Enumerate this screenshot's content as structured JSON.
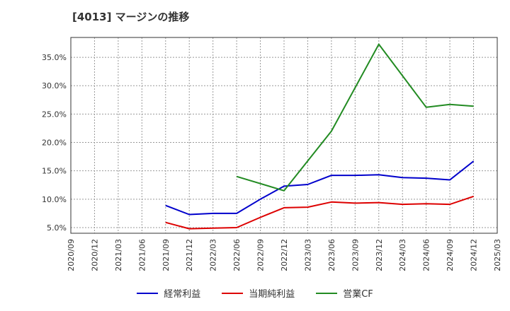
{
  "chart_data": {
    "type": "line",
    "title": "[4013]  マージンの推移",
    "xlabel": "",
    "ylabel": "",
    "x": [
      "2020/09",
      "2020/12",
      "2021/03",
      "2021/06",
      "2021/09",
      "2021/12",
      "2022/03",
      "2022/06",
      "2022/09",
      "2022/12",
      "2023/03",
      "2023/06",
      "2023/09",
      "2023/12",
      "2024/03",
      "2024/06",
      "2024/09",
      "2024/12",
      "2025/03"
    ],
    "y_ticks": [
      "5.0%",
      "10.0%",
      "15.0%",
      "20.0%",
      "25.0%",
      "30.0%",
      "35.0%"
    ],
    "y_tick_values": [
      5,
      10,
      15,
      20,
      25,
      30,
      35
    ],
    "ylim": [
      4,
      38.5
    ],
    "grid": true,
    "legend_position": "bottom",
    "series": [
      {
        "name": "経常利益",
        "color": "#0000cc",
        "values": [
          null,
          null,
          null,
          null,
          8.9,
          7.3,
          7.5,
          7.5,
          10.0,
          12.3,
          12.6,
          14.2,
          14.2,
          14.3,
          13.8,
          13.7,
          13.4,
          16.7,
          null
        ]
      },
      {
        "name": "当期純利益",
        "color": "#dd0000",
        "values": [
          null,
          null,
          null,
          null,
          5.9,
          4.8,
          4.9,
          5.0,
          6.8,
          8.5,
          8.6,
          9.5,
          9.3,
          9.4,
          9.1,
          9.2,
          9.1,
          10.5,
          null
        ]
      },
      {
        "name": "営業CF",
        "color": "#228b22",
        "values": [
          null,
          null,
          null,
          null,
          null,
          null,
          null,
          14.0,
          null,
          11.5,
          null,
          22.0,
          null,
          37.3,
          null,
          26.2,
          26.7,
          26.4,
          null
        ]
      }
    ]
  }
}
